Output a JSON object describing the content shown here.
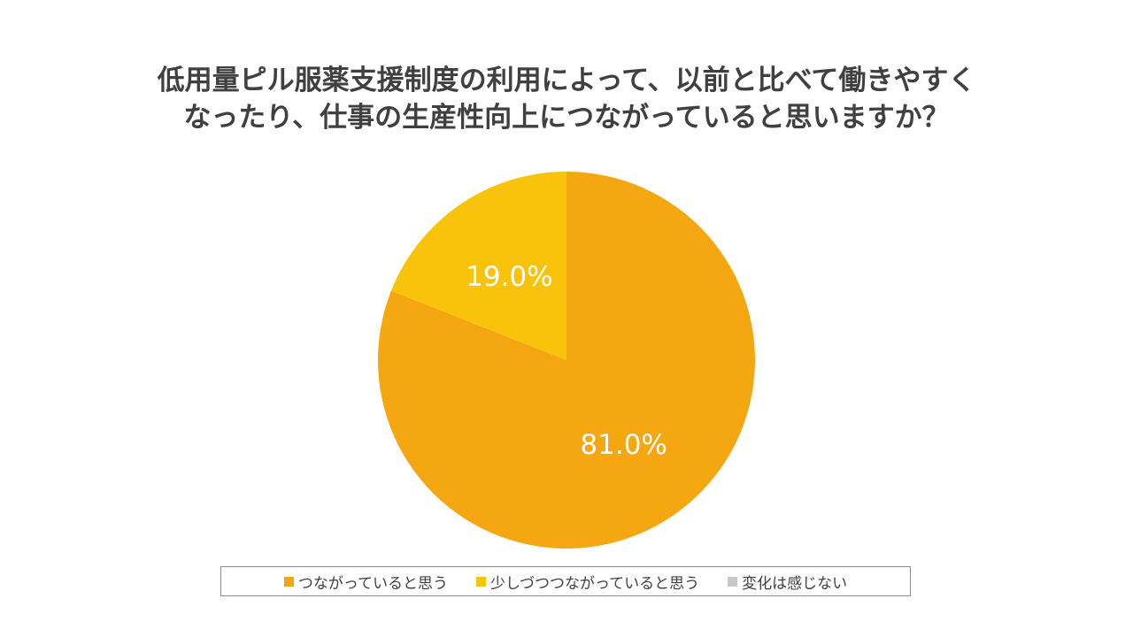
{
  "chart_data": {
    "type": "pie",
    "title_lines": [
      "低用量ピル服薬支援制度の利用によって、以前と比べて働きやすく",
      "なったり、仕事の生産性向上につながっていると思いますか？"
    ],
    "slices": [
      {
        "label": "つながっていると思う",
        "value": 81.0,
        "display": "81.0%",
        "color": "#F5A711"
      },
      {
        "label": "少しづつつながっていると思う",
        "value": 19.0,
        "display": "19.0%",
        "color": "#F9C30B"
      },
      {
        "label": "変化は感じない",
        "value": 0.0,
        "display": "",
        "color": "#C8C8C8"
      }
    ],
    "start": "12 o'clock",
    "direction": "clockwise",
    "legend_position": "bottom"
  }
}
